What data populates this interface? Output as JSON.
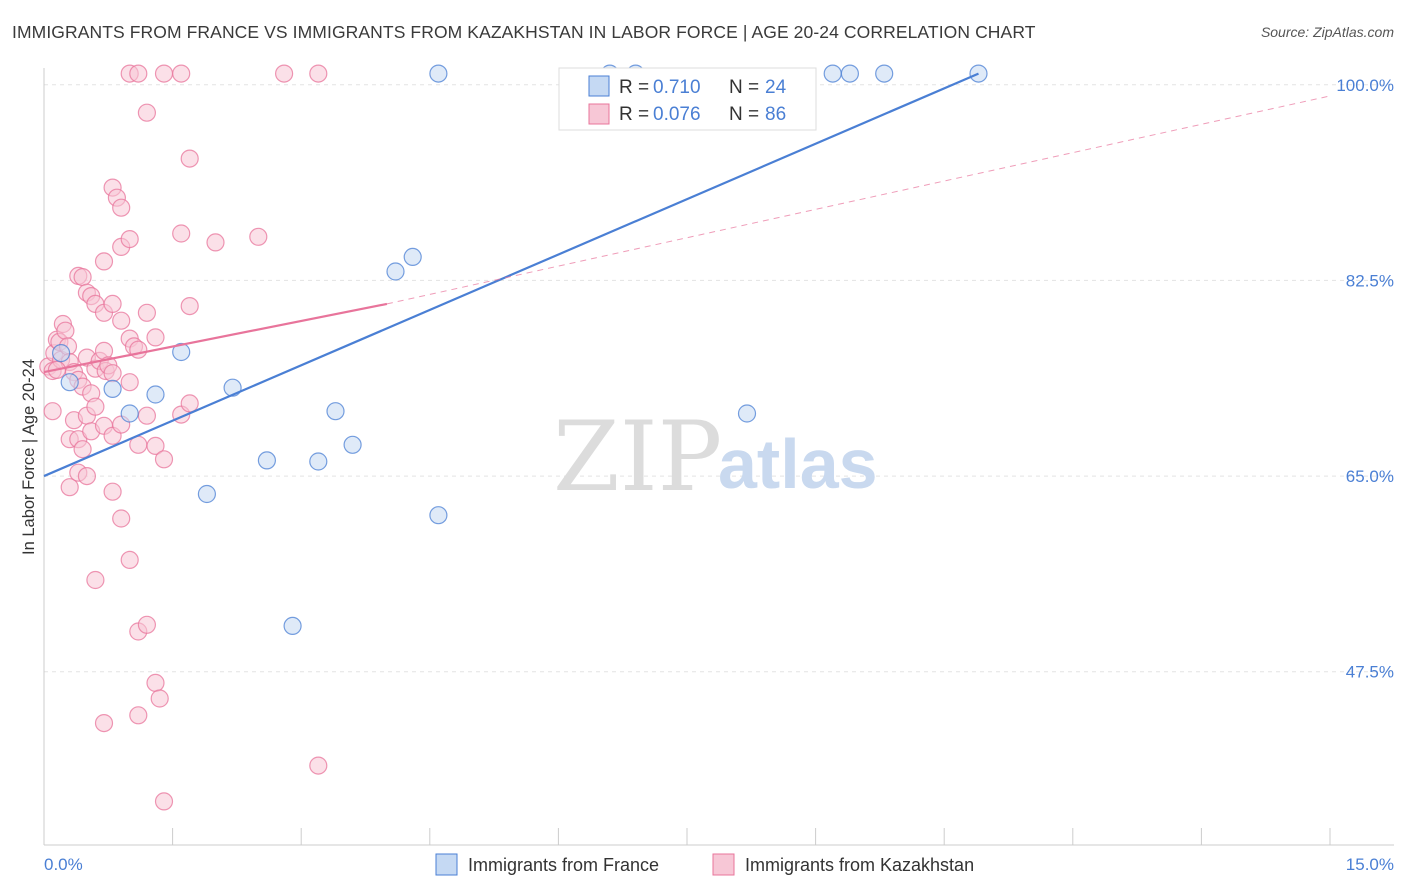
{
  "title": "IMMIGRANTS FROM FRANCE VS IMMIGRANTS FROM KAZAKHSTAN IN LABOR FORCE | AGE 20-24 CORRELATION CHART",
  "source": "Source: ZipAtlas.com",
  "watermark": {
    "zip": "ZIP",
    "atlas": "atlas"
  },
  "colors": {
    "france": "#4a7fd4",
    "france_fill": "#c5d9f3",
    "kazakhstan": "#e8749b",
    "kazakhstan_fill": "#f7c7d6",
    "tick_text": "#4a7fd4",
    "grid": "#e3e3e3"
  },
  "chart_data": {
    "type": "scatter",
    "xlabel": "",
    "ylabel": "In Labor Force | Age 20-24",
    "xlim": [
      0,
      15
    ],
    "ylim": [
      32,
      101.5
    ],
    "x_tick_labels": [
      {
        "value": 0,
        "label": "0.0%"
      },
      {
        "value": 15,
        "label": "15.0%"
      }
    ],
    "x_minor_ticks": [
      1.5,
      3.0,
      4.5,
      6.0,
      7.5,
      9.0,
      10.5,
      12.0,
      13.5,
      15.0
    ],
    "y_ticks": [
      {
        "value": 47.5,
        "label": "47.5%"
      },
      {
        "value": 65.0,
        "label": "65.0%"
      },
      {
        "value": 82.5,
        "label": "82.5%"
      },
      {
        "value": 100.0,
        "label": "100.0%"
      }
    ],
    "legend": {
      "position": "top-center",
      "entries": [
        {
          "series": "france",
          "r_label": "R =",
          "r_value": "0.710",
          "n_label": "N =",
          "n_value": "24"
        },
        {
          "series": "kazakhstan",
          "r_label": "R =",
          "r_value": "0.076",
          "n_label": "N =",
          "n_value": "86"
        }
      ]
    },
    "series": [
      {
        "name": "Immigrants from France",
        "key": "france",
        "trend": {
          "x": [
            0.0,
            10.9
          ],
          "y": [
            65.0,
            101.0
          ],
          "style": "solid"
        },
        "points": [
          [
            0.3,
            73.4
          ],
          [
            0.8,
            72.8
          ],
          [
            1.0,
            70.6
          ],
          [
            1.3,
            72.3
          ],
          [
            1.6,
            76.1
          ],
          [
            1.9,
            63.4
          ],
          [
            2.2,
            72.9
          ],
          [
            2.6,
            66.4
          ],
          [
            2.9,
            51.6
          ],
          [
            3.2,
            66.3
          ],
          [
            3.4,
            70.8
          ],
          [
            3.6,
            67.8
          ],
          [
            4.1,
            83.3
          ],
          [
            4.3,
            84.6
          ],
          [
            4.6,
            61.5
          ],
          [
            4.6,
            101.0
          ],
          [
            6.6,
            101.0
          ],
          [
            6.9,
            101.0
          ],
          [
            8.2,
            70.6
          ],
          [
            9.2,
            101.0
          ],
          [
            9.4,
            101.0
          ],
          [
            9.8,
            101.0
          ],
          [
            10.9,
            101.0
          ],
          [
            0.2,
            76.0
          ]
        ]
      },
      {
        "name": "Immigrants from Kazakhstan",
        "key": "kazakhstan",
        "trend": {
          "x": [
            0.0,
            4.0
          ],
          "y": [
            74.3,
            80.4
          ],
          "style": "solid"
        },
        "trend_extension": {
          "x": [
            4.0,
            15.0
          ],
          "y": [
            80.4,
            99.0
          ],
          "style": "dashed"
        },
        "points": [
          [
            0.05,
            74.8
          ],
          [
            0.1,
            74.4
          ],
          [
            0.12,
            76.0
          ],
          [
            0.15,
            77.2
          ],
          [
            0.18,
            77.0
          ],
          [
            0.2,
            75.4
          ],
          [
            0.22,
            78.6
          ],
          [
            0.25,
            78.0
          ],
          [
            0.28,
            76.6
          ],
          [
            0.3,
            75.2
          ],
          [
            0.35,
            74.3
          ],
          [
            0.4,
            73.6
          ],
          [
            0.45,
            73.0
          ],
          [
            0.5,
            75.6
          ],
          [
            0.55,
            72.4
          ],
          [
            0.6,
            74.6
          ],
          [
            0.65,
            75.3
          ],
          [
            0.7,
            76.2
          ],
          [
            0.72,
            74.4
          ],
          [
            0.75,
            74.9
          ],
          [
            0.8,
            74.2
          ],
          [
            0.1,
            70.8
          ],
          [
            0.15,
            74.5
          ],
          [
            0.3,
            68.3
          ],
          [
            0.35,
            70.0
          ],
          [
            0.4,
            68.3
          ],
          [
            0.45,
            67.4
          ],
          [
            0.5,
            70.4
          ],
          [
            0.55,
            69.0
          ],
          [
            0.6,
            71.2
          ],
          [
            0.7,
            69.5
          ],
          [
            0.8,
            68.6
          ],
          [
            0.9,
            69.6
          ],
          [
            1.0,
            73.4
          ],
          [
            1.1,
            67.8
          ],
          [
            1.2,
            70.4
          ],
          [
            1.3,
            67.7
          ],
          [
            1.4,
            66.5
          ],
          [
            1.6,
            70.5
          ],
          [
            1.7,
            71.5
          ],
          [
            0.3,
            64.0
          ],
          [
            0.4,
            65.3
          ],
          [
            0.5,
            65.0
          ],
          [
            0.8,
            63.6
          ],
          [
            0.9,
            61.2
          ],
          [
            1.0,
            57.5
          ],
          [
            0.6,
            55.7
          ],
          [
            1.1,
            51.1
          ],
          [
            1.2,
            51.7
          ],
          [
            1.3,
            46.5
          ],
          [
            1.35,
            45.1
          ],
          [
            1.1,
            43.6
          ],
          [
            0.7,
            42.9
          ],
          [
            1.4,
            35.9
          ],
          [
            3.2,
            39.1
          ],
          [
            0.4,
            82.9
          ],
          [
            0.45,
            82.8
          ],
          [
            0.5,
            81.4
          ],
          [
            0.55,
            81.1
          ],
          [
            0.6,
            80.4
          ],
          [
            0.7,
            79.6
          ],
          [
            0.8,
            80.4
          ],
          [
            0.9,
            78.9
          ],
          [
            1.0,
            77.3
          ],
          [
            1.05,
            76.6
          ],
          [
            1.1,
            76.3
          ],
          [
            1.2,
            79.6
          ],
          [
            1.3,
            77.4
          ],
          [
            1.7,
            80.2
          ],
          [
            0.7,
            84.2
          ],
          [
            0.9,
            85.5
          ],
          [
            1.0,
            86.2
          ],
          [
            1.6,
            86.7
          ],
          [
            2.0,
            85.9
          ],
          [
            2.5,
            86.4
          ],
          [
            0.8,
            90.8
          ],
          [
            0.85,
            89.9
          ],
          [
            0.9,
            89.0
          ],
          [
            1.7,
            93.4
          ],
          [
            1.2,
            97.5
          ],
          [
            1.0,
            101.0
          ],
          [
            1.1,
            101.0
          ],
          [
            1.4,
            101.0
          ],
          [
            1.6,
            101.0
          ],
          [
            2.8,
            101.0
          ],
          [
            3.2,
            101.0
          ]
        ]
      }
    ]
  }
}
